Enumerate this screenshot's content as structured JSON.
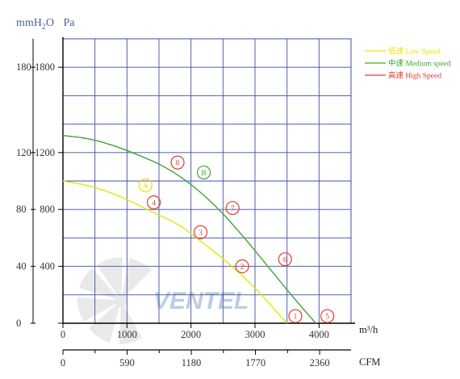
{
  "chart_data": {
    "type": "line",
    "unit_labels": {
      "mmh2o_prefix": "mmH",
      "mmh2o_sub": "2",
      "mmh2o_suffix": "O",
      "pa": "Pa"
    },
    "y_ticks_mmh2o": [
      0,
      40,
      80,
      120,
      180
    ],
    "y_ticks_pa": [
      "",
      "400",
      "800",
      "1200",
      "1800"
    ],
    "ylim_pa": [
      0,
      2000
    ],
    "x_ticks_m3h": [
      0,
      1000,
      2000,
      3000,
      4000
    ],
    "x_unit_m3h": "m³/h",
    "xlim_m3h": [
      0,
      4500
    ],
    "x_ticks_cfm": [
      0,
      590,
      1180,
      1770,
      2360
    ],
    "x_unit_cfm": "CFM",
    "grid": true,
    "legend_position": "top-right",
    "series": [
      {
        "name": "低速 Low Speed",
        "color": "#e6e600",
        "x": [
          0,
          400,
          800,
          1100,
          1400,
          1800,
          2200,
          2600,
          3000,
          3300,
          3500
        ],
        "y": [
          1000,
          970,
          910,
          850,
          780,
          700,
          560,
          420,
          250,
          100,
          0
        ]
      },
      {
        "name": "中速 Medium speed",
        "color": "#3fa535",
        "x": [
          0,
          400,
          800,
          1200,
          1600,
          2000,
          2400,
          2800,
          3200,
          3600,
          3950
        ],
        "y": [
          1320,
          1300,
          1250,
          1180,
          1100,
          980,
          820,
          620,
          400,
          180,
          0
        ]
      },
      {
        "name": "高速 High Speed",
        "color": "#e63b2e",
        "x": [],
        "y": []
      }
    ],
    "markers": [
      {
        "label": "1",
        "x": 3630,
        "y": 50,
        "color": "#e63b2e"
      },
      {
        "label": "2",
        "x": 2800,
        "y": 400,
        "color": "#e63b2e"
      },
      {
        "label": "3",
        "x": 2150,
        "y": 640,
        "color": "#e63b2e"
      },
      {
        "label": "4",
        "x": 1420,
        "y": 850,
        "color": "#e63b2e"
      },
      {
        "label": "5",
        "x": 4130,
        "y": 50,
        "color": "#e63b2e"
      },
      {
        "label": "6",
        "x": 3470,
        "y": 450,
        "color": "#e63b2e"
      },
      {
        "label": "7",
        "x": 2650,
        "y": 810,
        "color": "#e63b2e"
      },
      {
        "label": "8",
        "x": 1790,
        "y": 1130,
        "color": "#e63b2e"
      },
      {
        "label": "A",
        "x": 1290,
        "y": 970,
        "color": "#e6e600"
      },
      {
        "label": "B",
        "x": 2200,
        "y": 1060,
        "color": "#3fa535"
      }
    ],
    "watermark": "VENTEL"
  }
}
